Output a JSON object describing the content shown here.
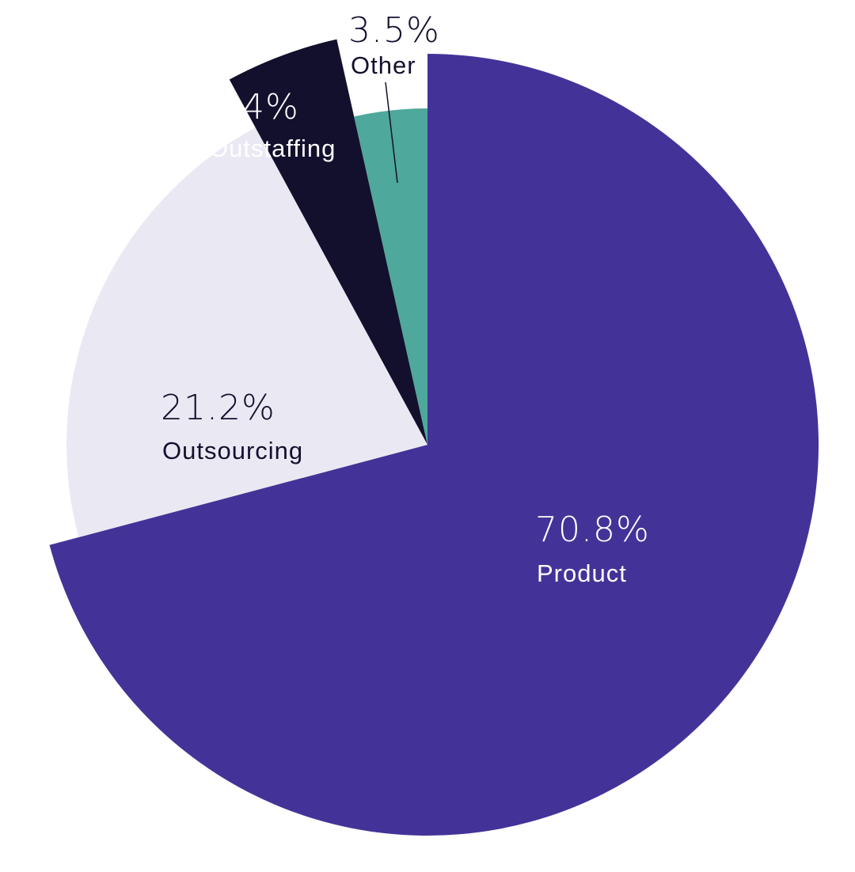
{
  "chart_data": {
    "type": "pie",
    "title": "",
    "start_angle_deg": 0,
    "direction": "clockwise",
    "legend": "none",
    "slices": [
      {
        "name": "Product",
        "value": 70.8,
        "label": "70.8%",
        "color": "#433398",
        "text_color": "#ffffff"
      },
      {
        "name": "Outsourcing",
        "value": 21.2,
        "label": "21.2%",
        "color": "#eae9f3",
        "text_color": "#13102e"
      },
      {
        "name": "Outstaffing",
        "value": 4.4,
        "label": "4.4%",
        "color": "#13102e",
        "text_color": "#ffffff"
      },
      {
        "name": "Other",
        "value": 3.5,
        "label": "3.5%",
        "color": "#4ea89b",
        "text_color": "#13102e"
      }
    ]
  }
}
